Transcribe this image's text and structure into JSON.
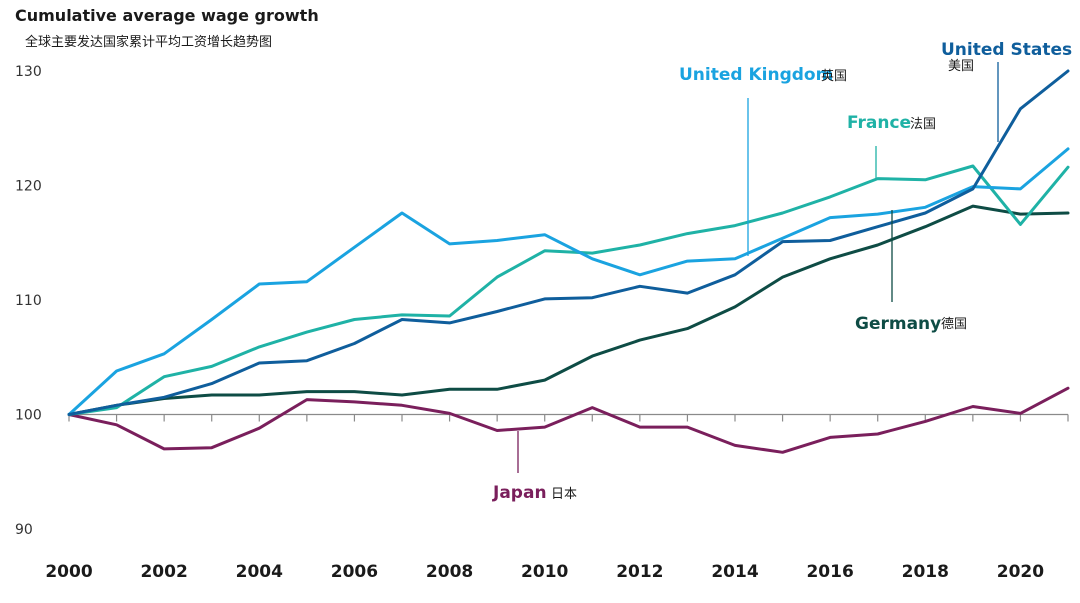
{
  "chart_data": {
    "type": "line",
    "title": "Cumulative average wage growth",
    "subtitle": "全球主要发达国家累计平均工资增长趋势图",
    "xlabel": "",
    "ylabel": "",
    "x": [
      2000,
      2001,
      2002,
      2003,
      2004,
      2005,
      2006,
      2007,
      2008,
      2009,
      2010,
      2011,
      2012,
      2013,
      2014,
      2015,
      2016,
      2017,
      2018,
      2019,
      2020,
      2021
    ],
    "xlim": [
      2000,
      2021
    ],
    "ylim": [
      90,
      130
    ],
    "y_ticks": [
      "90",
      "100",
      "110",
      "120",
      "130"
    ],
    "x_ticks": [
      "2000",
      "2002",
      "2004",
      "2006",
      "2008",
      "2010",
      "2012",
      "2014",
      "2016",
      "2018",
      "2020"
    ],
    "baseline": 100,
    "series": [
      {
        "key": "us",
        "name": "United States",
        "name_cn": "美国",
        "color": "#0f5e9c",
        "values": [
          100,
          100.8,
          101.5,
          102.7,
          104.5,
          104.7,
          106.2,
          108.3,
          108.0,
          109.0,
          110.1,
          110.2,
          111.2,
          110.6,
          112.2,
          115.1,
          115.2,
          116.4,
          117.6,
          119.7,
          126.7,
          130.0
        ]
      },
      {
        "key": "uk",
        "name": "United Kingdom",
        "name_cn": "英国",
        "color": "#1aa3e0",
        "values": [
          100,
          103.8,
          105.3,
          108.3,
          111.4,
          111.6,
          114.6,
          117.6,
          114.9,
          115.2,
          115.7,
          113.6,
          112.2,
          113.4,
          113.6,
          115.4,
          117.2,
          117.5,
          118.1,
          119.9,
          119.7,
          123.2
        ]
      },
      {
        "key": "france",
        "name": "France",
        "name_cn": "法国",
        "color": "#1fb2a6",
        "values": [
          100,
          100.6,
          103.3,
          104.2,
          105.9,
          107.2,
          108.3,
          108.7,
          108.6,
          112.0,
          114.3,
          114.1,
          114.8,
          115.8,
          116.5,
          117.6,
          119.0,
          120.6,
          120.5,
          121.7,
          116.6,
          121.6
        ]
      },
      {
        "key": "germany",
        "name": "Germany",
        "name_cn": "德国",
        "color": "#0e4c45",
        "values": [
          100,
          100.8,
          101.4,
          101.7,
          101.7,
          102.0,
          102.0,
          101.7,
          102.2,
          102.2,
          103.0,
          105.1,
          106.5,
          107.5,
          109.4,
          112.0,
          113.6,
          114.8,
          116.4,
          118.2,
          117.5,
          117.6
        ]
      },
      {
        "key": "japan",
        "name": "Japan",
        "name_cn": "日本",
        "color": "#7a1f5c",
        "values": [
          100,
          99.1,
          97.0,
          97.1,
          98.8,
          101.3,
          101.1,
          100.8,
          100.1,
          98.6,
          98.9,
          100.6,
          98.9,
          98.9,
          97.3,
          96.7,
          98.0,
          98.3,
          99.4,
          100.7,
          100.1,
          102.3
        ]
      }
    ],
    "annotations": [
      {
        "series": "us",
        "en": "United States",
        "cn": "美国"
      },
      {
        "series": "uk",
        "en": "United Kingdom",
        "cn": "英国"
      },
      {
        "series": "france",
        "en": "France",
        "cn": "法国"
      },
      {
        "series": "germany",
        "en": "Germany",
        "cn": "德国"
      },
      {
        "series": "japan",
        "en": "Japan",
        "cn": "日本"
      }
    ]
  }
}
